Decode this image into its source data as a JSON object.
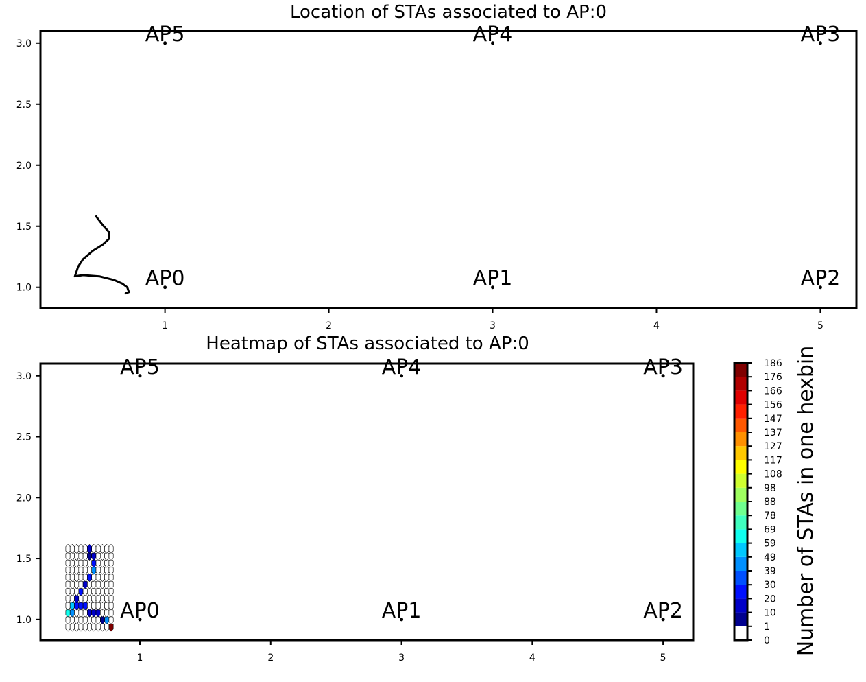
{
  "chart_data": [
    {
      "type": "line",
      "title": "Location of STAs associated to AP:0",
      "xlim": [
        0.24,
        5.22
      ],
      "ylim": [
        0.83,
        3.1
      ],
      "x_ticks": [
        "1",
        "2",
        "3",
        "4",
        "5"
      ],
      "y_ticks": [
        "1.0",
        "1.5",
        "2.0",
        "2.5",
        "3.0"
      ],
      "access_points": [
        {
          "label": "AP0",
          "x": 1,
          "y": 1
        },
        {
          "label": "AP1",
          "x": 3,
          "y": 1
        },
        {
          "label": "AP2",
          "x": 5,
          "y": 1
        },
        {
          "label": "AP3",
          "x": 5,
          "y": 3
        },
        {
          "label": "AP4",
          "x": 3,
          "y": 3
        },
        {
          "label": "AP5",
          "x": 1,
          "y": 3
        }
      ],
      "series": [
        {
          "x": [
            0.58,
            0.62,
            0.66,
            0.66,
            0.62,
            0.56,
            0.5,
            0.47,
            0.45,
            0.5,
            0.6,
            0.69,
            0.74,
            0.77,
            0.78,
            0.76
          ],
          "y": [
            1.58,
            1.51,
            1.45,
            1.4,
            1.35,
            1.3,
            1.23,
            1.17,
            1.09,
            1.1,
            1.09,
            1.06,
            1.03,
            1.0,
            0.96,
            0.95
          ]
        }
      ]
    },
    {
      "type": "heatmap",
      "title": "Heatmap of STAs associated to AP:0",
      "xlim": [
        0.24,
        5.23
      ],
      "ylim": [
        0.83,
        3.1
      ],
      "x_ticks": [
        "1",
        "2",
        "3",
        "4",
        "5"
      ],
      "y_ticks": [
        "1.0",
        "1.5",
        "2.0",
        "2.5",
        "3.0"
      ],
      "access_points": [
        {
          "label": "AP0",
          "x": 1,
          "y": 1
        },
        {
          "label": "AP1",
          "x": 3,
          "y": 1
        },
        {
          "label": "AP2",
          "x": 5,
          "y": 1
        },
        {
          "label": "AP3",
          "x": 5,
          "y": 3
        },
        {
          "label": "AP4",
          "x": 3,
          "y": 3
        },
        {
          "label": "AP5",
          "x": 1,
          "y": 3
        }
      ],
      "hexbin": {
        "x_range": [
          0.45,
          0.78
        ],
        "y_range": [
          0.94,
          1.58
        ],
        "columns": 11,
        "rows": 12,
        "cells": [
          {
            "col": 5,
            "row": 11,
            "count": 12
          },
          {
            "col": 5,
            "row": 10,
            "count": 10
          },
          {
            "col": 6,
            "row": 10,
            "count": 20
          },
          {
            "col": 6,
            "row": 9,
            "count": 30
          },
          {
            "col": 6,
            "row": 8,
            "count": 49
          },
          {
            "col": 5,
            "row": 7,
            "count": 25
          },
          {
            "col": 4,
            "row": 6,
            "count": 20
          },
          {
            "col": 3,
            "row": 5,
            "count": 30
          },
          {
            "col": 2,
            "row": 4,
            "count": 18
          },
          {
            "col": 1,
            "row": 3,
            "count": 59
          },
          {
            "col": 2,
            "row": 3,
            "count": 30
          },
          {
            "col": 3,
            "row": 3,
            "count": 30
          },
          {
            "col": 4,
            "row": 3,
            "count": 25
          },
          {
            "col": 0,
            "row": 2,
            "count": 69
          },
          {
            "col": 1,
            "row": 2,
            "count": 49
          },
          {
            "col": 5,
            "row": 2,
            "count": 20
          },
          {
            "col": 6,
            "row": 2,
            "count": 15
          },
          {
            "col": 7,
            "row": 2,
            "count": 12
          },
          {
            "col": 8,
            "row": 1,
            "count": 10
          },
          {
            "col": 9,
            "row": 1,
            "count": 49
          },
          {
            "col": 10,
            "row": 0,
            "count": 186
          }
        ]
      },
      "colorbar": {
        "label": "Number of STAs in one hexbin",
        "ticks": [
          "0",
          "1",
          "10",
          "20",
          "30",
          "39",
          "49",
          "59",
          "69",
          "78",
          "88",
          "98",
          "108",
          "117",
          "127",
          "137",
          "147",
          "156",
          "166",
          "176",
          "186"
        ],
        "colors": [
          "#ffffff",
          "#00008f",
          "#0000c8",
          "#0010ff",
          "#0050ff",
          "#0090ff",
          "#00c8ff",
          "#10ffef",
          "#40ffbf",
          "#70ff8f",
          "#9fff60",
          "#cfff30",
          "#ffff00",
          "#ffc800",
          "#ff9000",
          "#ff5800",
          "#ff2000",
          "#e00000",
          "#b00000",
          "#800000"
        ]
      }
    }
  ]
}
